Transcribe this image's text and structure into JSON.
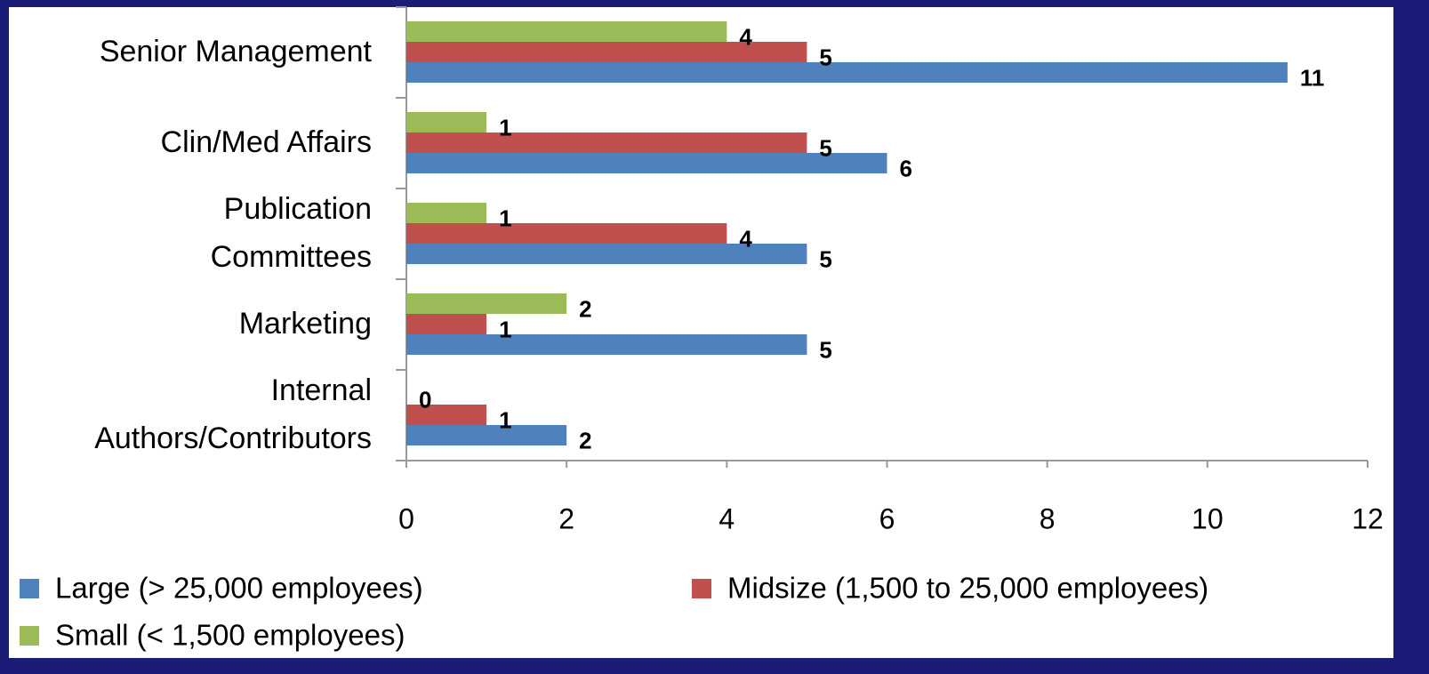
{
  "chart_data": {
    "type": "bar",
    "orientation": "horizontal",
    "categories": [
      "Senior Management",
      "Clin/Med Affairs",
      "Publication\nCommittees",
      "Marketing",
      "Internal\nAuthors/Contributors"
    ],
    "series": [
      {
        "name": "Large (> 25,000 employees)",
        "color": "#4f81bd",
        "values": [
          11,
          6,
          5,
          5,
          2
        ]
      },
      {
        "name": "Midsize (1,500 to 25,000 employees)",
        "color": "#c0504d",
        "values": [
          5,
          5,
          4,
          1,
          1
        ]
      },
      {
        "name": "Small (< 1,500 employees)",
        "color": "#9bbb59",
        "values": [
          4,
          1,
          1,
          2,
          0
        ]
      }
    ],
    "xlim": [
      0,
      12
    ],
    "xticks": [
      0,
      2,
      4,
      6,
      8,
      10,
      12
    ],
    "grid": false,
    "legend": "bottom"
  }
}
